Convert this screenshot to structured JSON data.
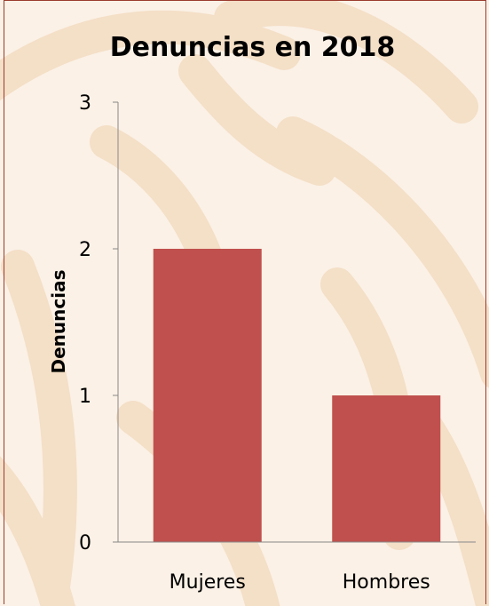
{
  "chart_data": {
    "type": "bar",
    "title": "Denuncias en 2018",
    "xlabel": "",
    "ylabel": "Denuncias",
    "categories": [
      "Mujeres",
      "Hombres"
    ],
    "values": [
      2,
      1
    ],
    "ylim": [
      0,
      3
    ],
    "yticks": [
      "0",
      "1",
      "2",
      "3"
    ],
    "bar_color": "#c0504d",
    "grid": false,
    "legend": "none"
  },
  "colors": {
    "background": "#fbf1e6",
    "pattern": "#f3dcc2",
    "frame": "#9b3b2f",
    "axis": "#888888"
  }
}
